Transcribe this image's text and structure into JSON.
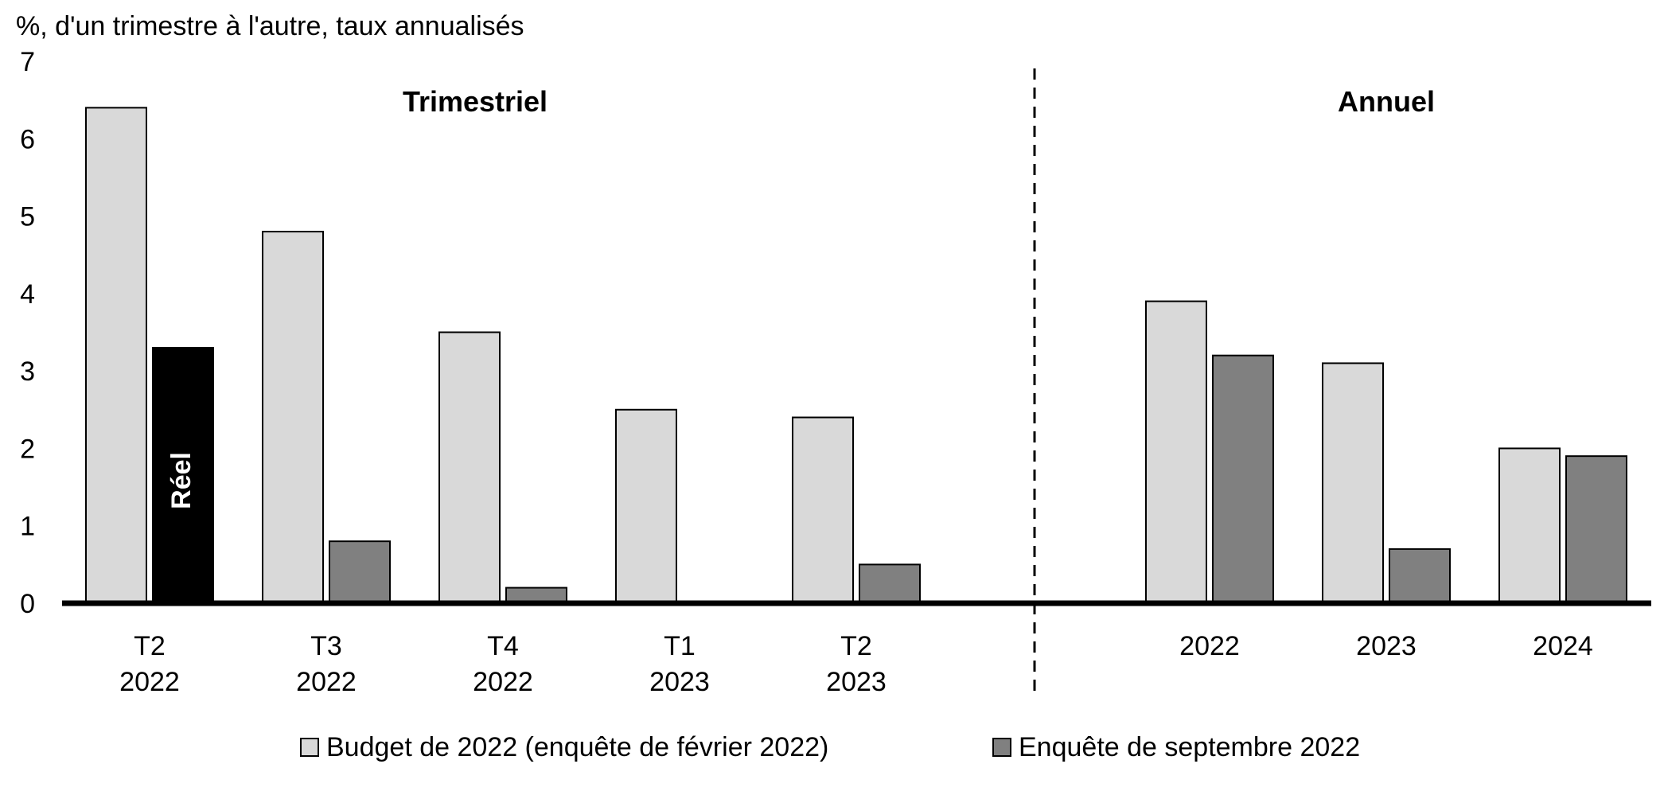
{
  "chart_data": {
    "type": "bar",
    "y_unit_label": "%, d'un trimestre à l'autre, taux annualisés",
    "ylim": [
      0,
      7
    ],
    "y_ticks": [
      0,
      1,
      2,
      3,
      4,
      5,
      6,
      7
    ],
    "grid": false,
    "legend_position": "bottom",
    "panels": [
      {
        "label": "Trimestriel"
      },
      {
        "label": "Annuel"
      }
    ],
    "categories": [
      {
        "line1": "T2",
        "line2": "2022",
        "panel": 0
      },
      {
        "line1": "T3",
        "line2": "2022",
        "panel": 0
      },
      {
        "line1": "T4",
        "line2": "2022",
        "panel": 0
      },
      {
        "line1": "T1",
        "line2": "2023",
        "panel": 0
      },
      {
        "line1": "T2",
        "line2": "2023",
        "panel": 0
      },
      {
        "line1": "2022",
        "line2": "",
        "panel": 1
      },
      {
        "line1": "2023",
        "line2": "",
        "panel": 1
      },
      {
        "line1": "2024",
        "line2": "",
        "panel": 1
      }
    ],
    "series": [
      {
        "name": "Budget de 2022 (enquête de février 2022)",
        "color": "#d9d9d9",
        "values": [
          6.4,
          4.8,
          3.5,
          2.5,
          2.4,
          3.9,
          3.1,
          2.0
        ]
      },
      {
        "name": "Enquête de septembre 2022",
        "color": "#808080",
        "values": [
          3.3,
          0.8,
          0.2,
          0.0,
          0.5,
          3.2,
          0.7,
          1.9
        ]
      }
    ],
    "highlight": {
      "series_index": 1,
      "category_index": 0,
      "color": "#000000",
      "label": "Réel",
      "label_color": "#ffffff"
    }
  }
}
